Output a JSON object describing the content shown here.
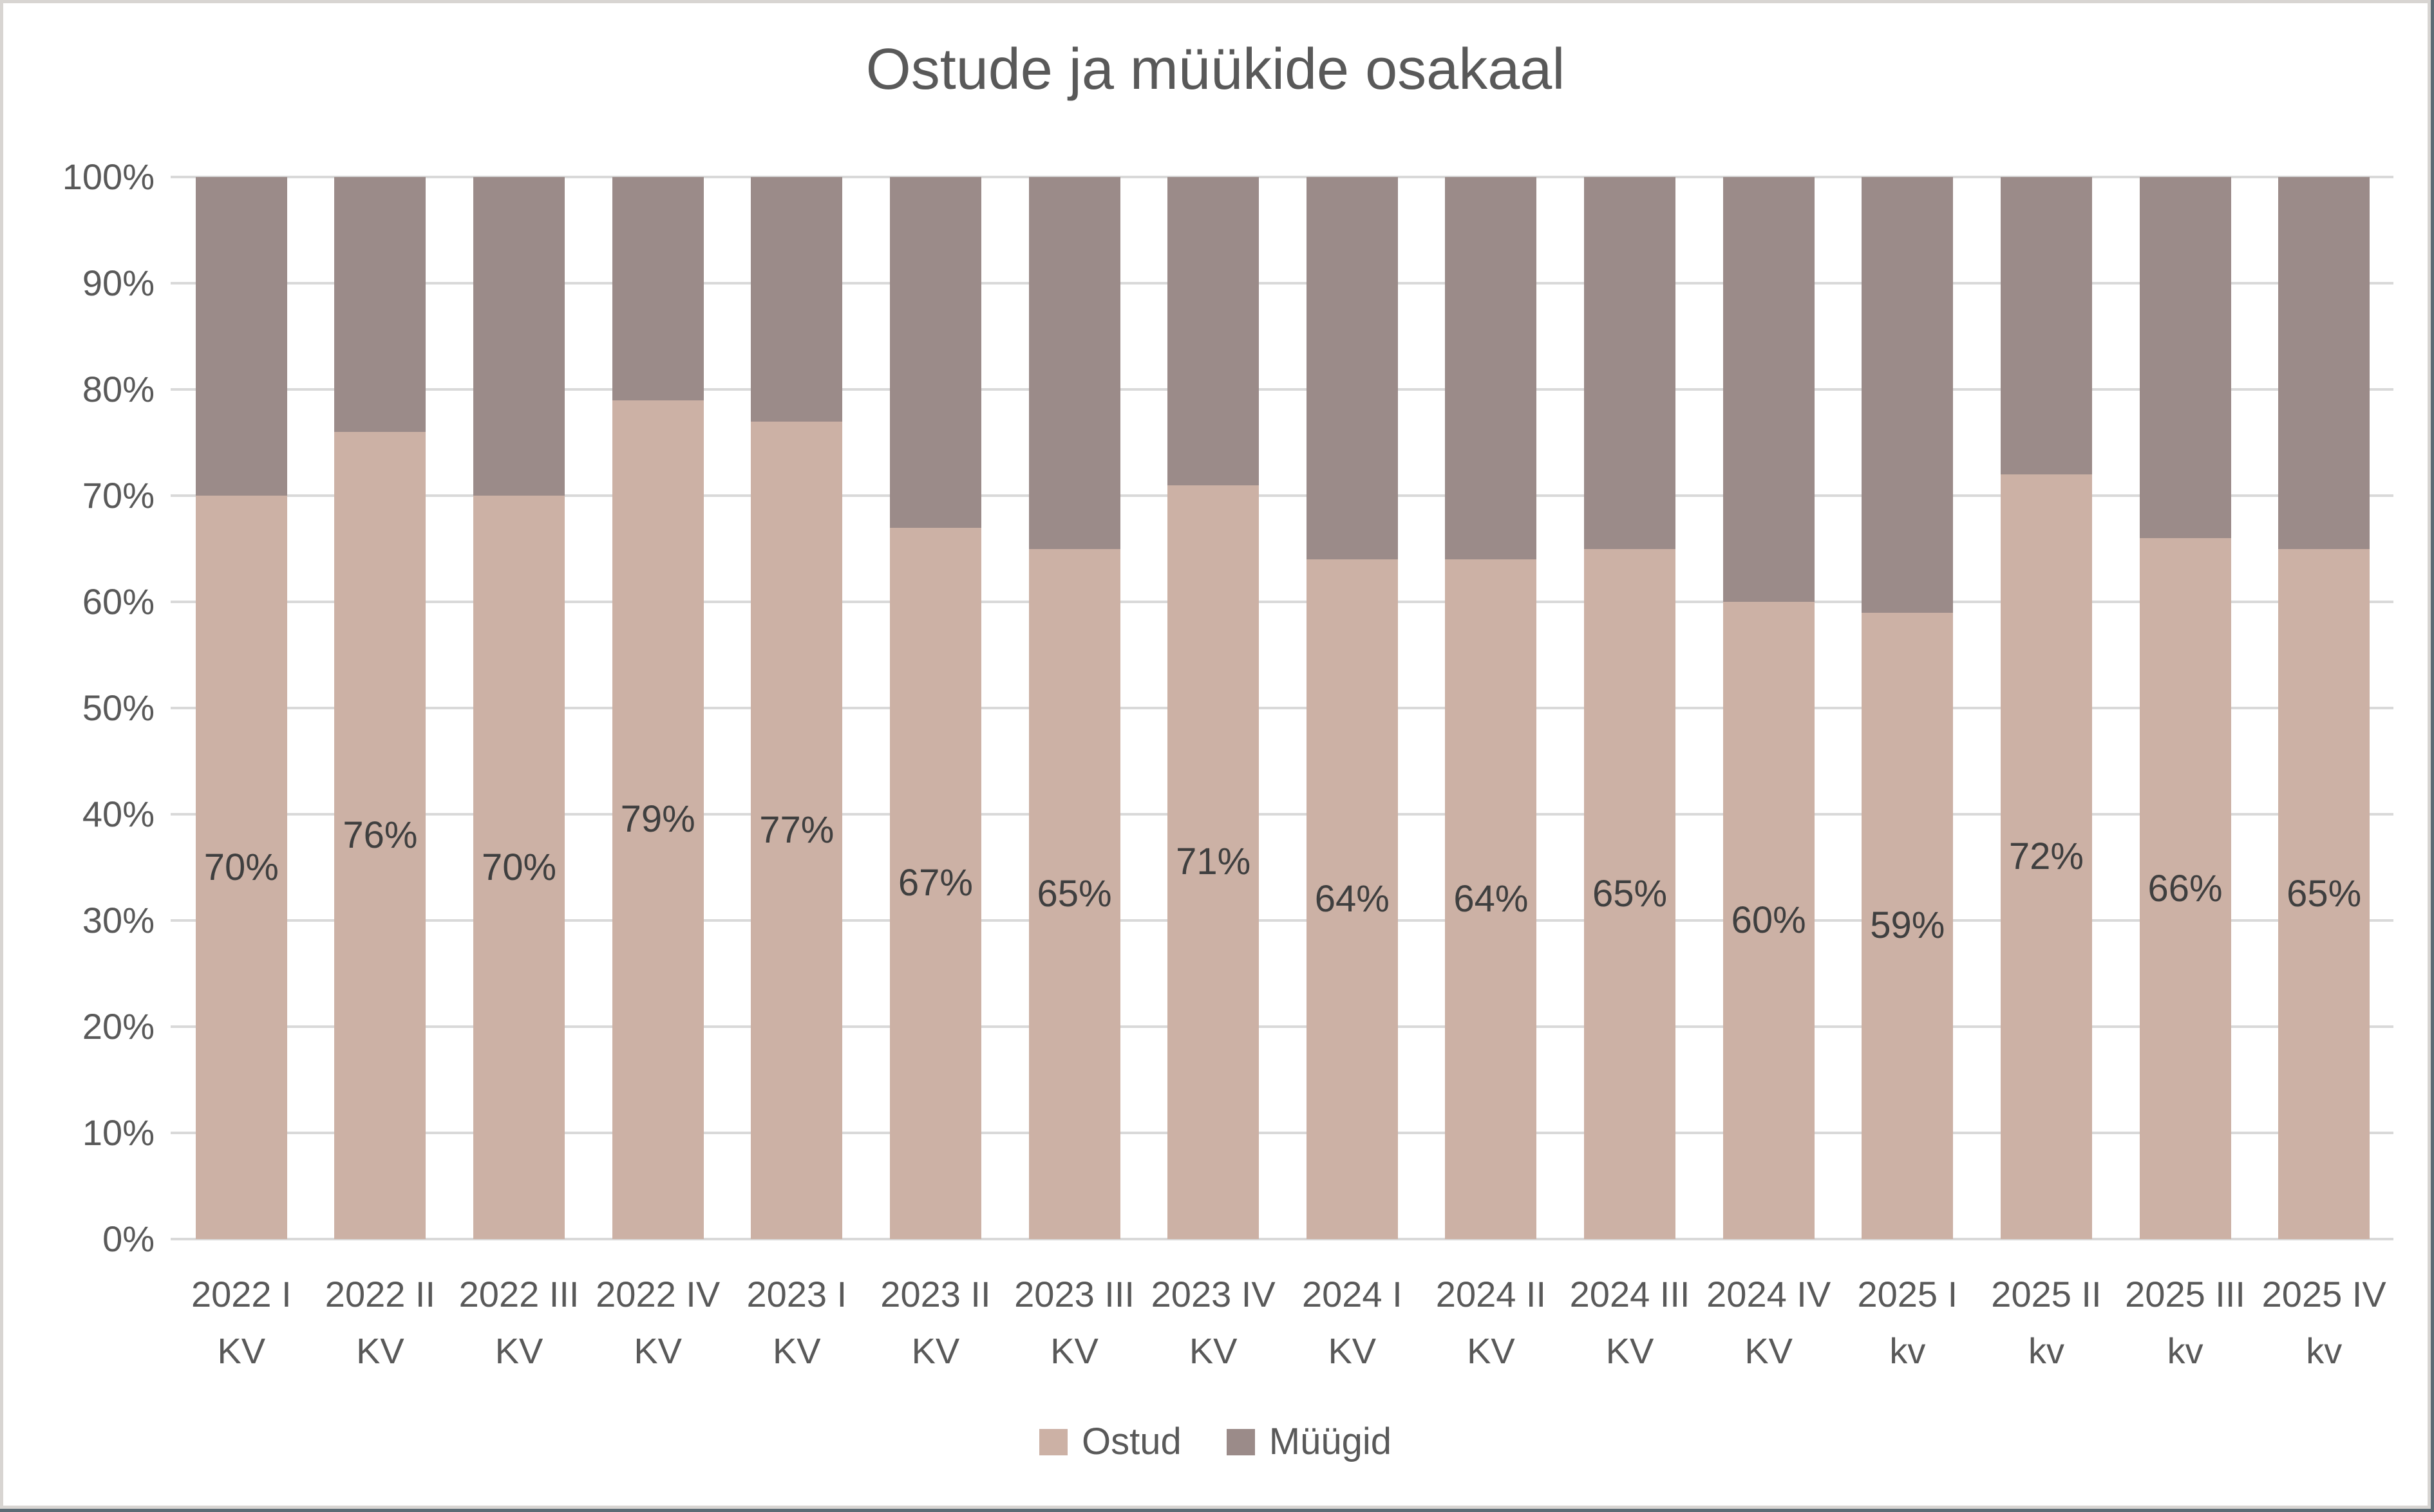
{
  "title": "Ostude ja müükide osakaal",
  "y_axis": {
    "tick_labels": [
      "100%",
      "90%",
      "80%",
      "70%",
      "60%",
      "50%",
      "40%",
      "30%",
      "20%",
      "10%",
      "0%"
    ]
  },
  "legend": {
    "items": [
      {
        "label": "Ostud",
        "color": "#ccb1a5"
      },
      {
        "label": "Müügid",
        "color": "#9b8b89"
      }
    ]
  },
  "colors": {
    "ostud": "#ccb1a5",
    "muugid": "#9b8b89",
    "gridline": "#d9d9d9",
    "axis_text": "#595959",
    "data_label_text": "#3f3f3f",
    "frame_border": "#d8d5d2",
    "window_edge": "#5d6b74",
    "background": "#ffffff"
  },
  "chart_data": {
    "type": "bar",
    "subtype": "stacked-100-percent-column",
    "title": "Ostude ja müükide osakaal",
    "categories": [
      "2022 I\nKV",
      "2022 II\nKV",
      "2022 III\nKV",
      "2022 IV\nKV",
      "2023 I\nKV",
      "2023 II\nKV",
      "2023 III\nKV",
      "2023 IV\nKV",
      "2024 I\nKV",
      "2024 II\nKV",
      "2024 III\nKV",
      "2024 IV\nKV",
      "2025 I\nkv",
      "2025 II\nkv",
      "2025 III\nkv",
      "2025 IV\nkv"
    ],
    "series": [
      {
        "name": "Ostud",
        "color": "#ccb1a5",
        "values": [
          70,
          76,
          70,
          79,
          77,
          67,
          65,
          71,
          64,
          64,
          65,
          60,
          59,
          72,
          66,
          65
        ],
        "data_labels": [
          "70%",
          "76%",
          "70%",
          "79%",
          "77%",
          "67%",
          "65%",
          "71%",
          "64%",
          "64%",
          "65%",
          "60%",
          "59%",
          "72%",
          "66%",
          "65%"
        ],
        "data_label_position": "inside-center"
      },
      {
        "name": "Müügid",
        "color": "#9b8b89",
        "values": [
          30,
          24,
          30,
          21,
          23,
          33,
          35,
          29,
          36,
          36,
          35,
          40,
          41,
          28,
          34,
          35
        ],
        "data_labels": null,
        "data_label_position": null
      }
    ],
    "xlabel": "",
    "ylabel": "",
    "ylim": [
      0,
      100
    ],
    "y_tick_step": 10,
    "y_tick_format": "percent",
    "grid": true,
    "legend_position": "bottom"
  }
}
